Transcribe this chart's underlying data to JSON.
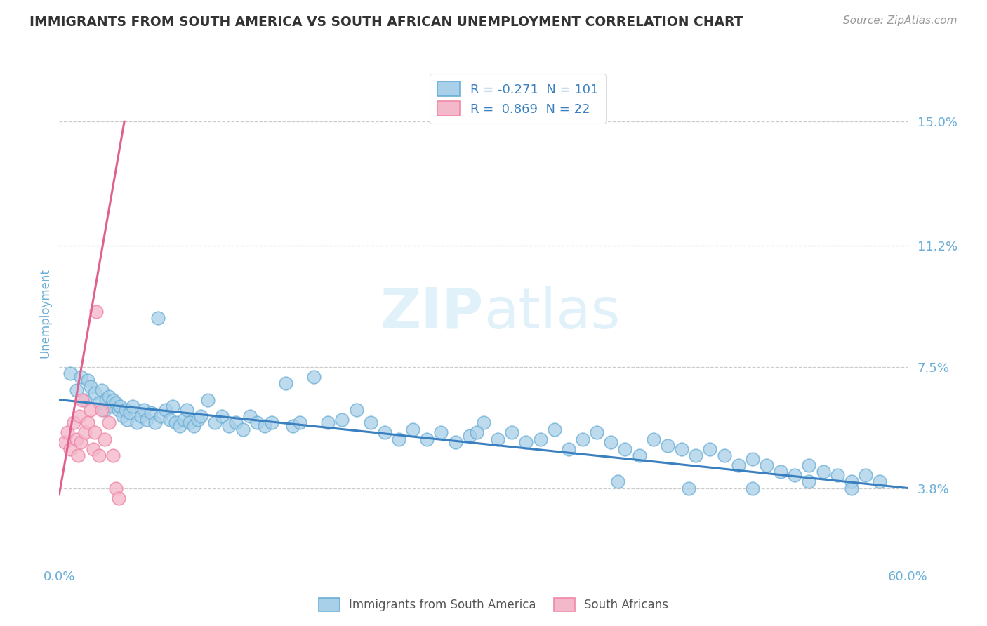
{
  "title": "IMMIGRANTS FROM SOUTH AMERICA VS SOUTH AFRICAN UNEMPLOYMENT CORRELATION CHART",
  "source": "Source: ZipAtlas.com",
  "ylabel": "Unemployment",
  "xlim": [
    0.0,
    0.6
  ],
  "ylim": [
    0.015,
    0.168
  ],
  "yticks": [
    0.038,
    0.075,
    0.112,
    0.15
  ],
  "ytick_labels": [
    "3.8%",
    "7.5%",
    "11.2%",
    "15.0%"
  ],
  "xticks": [
    0.0,
    0.1,
    0.2,
    0.3,
    0.4,
    0.5,
    0.6
  ],
  "xtick_labels": [
    "0.0%",
    "",
    "",
    "",
    "",
    "",
    "60.0%"
  ],
  "blue_R": -0.271,
  "blue_N": 101,
  "pink_R": 0.869,
  "pink_N": 22,
  "blue_color": "#a8d0e8",
  "pink_color": "#f4b8cb",
  "blue_edge_color": "#6aaed6",
  "pink_edge_color": "#f088a8",
  "blue_line_color": "#3a80c0",
  "pink_line_color": "#e06090",
  "legend_label_blue": "Immigrants from South America",
  "legend_label_pink": "South Africans",
  "title_color": "#333333",
  "tick_label_color": "#6aaed6",
  "background_color": "#ffffff",
  "blue_scatter_x": [
    0.008,
    0.012,
    0.015,
    0.018,
    0.02,
    0.022,
    0.025,
    0.028,
    0.03,
    0.032,
    0.033,
    0.035,
    0.037,
    0.038,
    0.04,
    0.042,
    0.043,
    0.045,
    0.047,
    0.048,
    0.05,
    0.052,
    0.055,
    0.058,
    0.06,
    0.062,
    0.065,
    0.068,
    0.07,
    0.072,
    0.075,
    0.078,
    0.08,
    0.082,
    0.085,
    0.088,
    0.09,
    0.092,
    0.095,
    0.098,
    0.1,
    0.105,
    0.11,
    0.115,
    0.12,
    0.125,
    0.13,
    0.135,
    0.14,
    0.145,
    0.15,
    0.16,
    0.165,
    0.17,
    0.18,
    0.19,
    0.2,
    0.21,
    0.22,
    0.23,
    0.24,
    0.25,
    0.26,
    0.27,
    0.28,
    0.29,
    0.3,
    0.31,
    0.32,
    0.33,
    0.34,
    0.35,
    0.36,
    0.37,
    0.38,
    0.39,
    0.4,
    0.41,
    0.42,
    0.43,
    0.44,
    0.45,
    0.46,
    0.47,
    0.48,
    0.49,
    0.5,
    0.51,
    0.52,
    0.53,
    0.54,
    0.55,
    0.56,
    0.57,
    0.58,
    0.53,
    0.56,
    0.49,
    0.445,
    0.395,
    0.295
  ],
  "blue_scatter_y": [
    0.073,
    0.068,
    0.072,
    0.065,
    0.071,
    0.069,
    0.067,
    0.064,
    0.068,
    0.062,
    0.065,
    0.066,
    0.063,
    0.065,
    0.064,
    0.062,
    0.063,
    0.06,
    0.062,
    0.059,
    0.061,
    0.063,
    0.058,
    0.06,
    0.062,
    0.059,
    0.061,
    0.058,
    0.09,
    0.06,
    0.062,
    0.059,
    0.063,
    0.058,
    0.057,
    0.059,
    0.062,
    0.058,
    0.057,
    0.059,
    0.06,
    0.065,
    0.058,
    0.06,
    0.057,
    0.058,
    0.056,
    0.06,
    0.058,
    0.057,
    0.058,
    0.07,
    0.057,
    0.058,
    0.072,
    0.058,
    0.059,
    0.062,
    0.058,
    0.055,
    0.053,
    0.056,
    0.053,
    0.055,
    0.052,
    0.054,
    0.058,
    0.053,
    0.055,
    0.052,
    0.053,
    0.056,
    0.05,
    0.053,
    0.055,
    0.052,
    0.05,
    0.048,
    0.053,
    0.051,
    0.05,
    0.048,
    0.05,
    0.048,
    0.045,
    0.047,
    0.045,
    0.043,
    0.042,
    0.045,
    0.043,
    0.042,
    0.04,
    0.042,
    0.04,
    0.04,
    0.038,
    0.038,
    0.038,
    0.04,
    0.055
  ],
  "pink_scatter_x": [
    0.004,
    0.006,
    0.008,
    0.01,
    0.012,
    0.013,
    0.014,
    0.015,
    0.016,
    0.018,
    0.02,
    0.022,
    0.024,
    0.025,
    0.026,
    0.028,
    0.03,
    0.032,
    0.035,
    0.038,
    0.04,
    0.042
  ],
  "pink_scatter_y": [
    0.052,
    0.055,
    0.05,
    0.058,
    0.053,
    0.048,
    0.06,
    0.052,
    0.065,
    0.055,
    0.058,
    0.062,
    0.05,
    0.055,
    0.092,
    0.048,
    0.062,
    0.053,
    0.058,
    0.048,
    0.038,
    0.035
  ],
  "blue_line_x_start": 0.0,
  "blue_line_x_end": 0.6,
  "blue_line_y_start": 0.065,
  "blue_line_y_end": 0.038,
  "pink_line_x_start": 0.0,
  "pink_line_x_end": 0.046,
  "pink_line_y_start": 0.036,
  "pink_line_y_end": 0.15
}
